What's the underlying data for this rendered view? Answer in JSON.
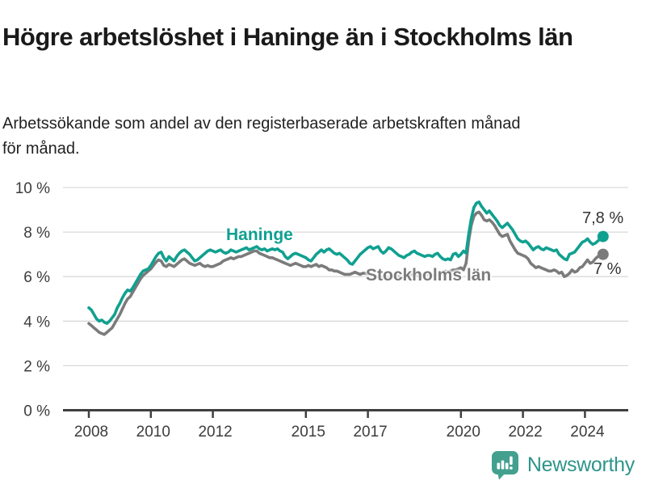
{
  "header": {
    "title": "Högre arbetslöshet i Haninge än i Stockholms län",
    "subtitle": "Arbetssökande som andel av den registerbaserade arbetskraften månad för månad."
  },
  "footer": {
    "brand": "Newsworthy",
    "brand_color": "#2d958a",
    "logo_icon": "bar-chart-speech-bubble-icon",
    "logo_color": "#43a08f"
  },
  "chart_data": {
    "type": "line",
    "unit": "%",
    "grid": true,
    "ylim": [
      0,
      10
    ],
    "y_ticks": [
      0,
      2,
      4,
      6,
      8,
      10
    ],
    "y_tick_suffix": " %",
    "x_start_year": 2008,
    "points_per_year": 12,
    "x_ticks": [
      2008,
      2010,
      2012,
      2015,
      2017,
      2020,
      2022,
      2024
    ],
    "series": [
      {
        "name": "Haninge",
        "color": "#10a090",
        "end_label": "7,8 %",
        "end_value": 7.8,
        "values": [
          4.6,
          4.5,
          4.3,
          4.1,
          4.0,
          4.05,
          3.95,
          3.9,
          4.0,
          4.15,
          4.3,
          4.6,
          4.8,
          5.05,
          5.25,
          5.4,
          5.35,
          5.5,
          5.7,
          5.9,
          6.1,
          6.25,
          6.3,
          6.35,
          6.5,
          6.7,
          6.9,
          7.05,
          7.1,
          6.85,
          6.7,
          6.9,
          6.8,
          6.7,
          6.9,
          7.05,
          7.15,
          7.2,
          7.1,
          7.0,
          6.85,
          6.7,
          6.75,
          6.85,
          6.95,
          7.05,
          7.15,
          7.2,
          7.15,
          7.1,
          7.15,
          7.2,
          7.1,
          7.05,
          7.1,
          7.2,
          7.15,
          7.1,
          7.15,
          7.2,
          7.25,
          7.3,
          7.2,
          7.25,
          7.3,
          7.35,
          7.25,
          7.2,
          7.25,
          7.15,
          7.2,
          7.25,
          7.2,
          7.25,
          7.15,
          7.1,
          6.9,
          6.8,
          6.9,
          7.0,
          7.05,
          7.0,
          6.95,
          6.9,
          6.85,
          6.75,
          6.7,
          6.85,
          7.0,
          7.1,
          7.2,
          7.1,
          7.2,
          7.25,
          7.15,
          7.05,
          7.0,
          7.05,
          6.95,
          6.85,
          6.75,
          6.6,
          6.55,
          6.7,
          6.85,
          7.0,
          7.1,
          7.2,
          7.3,
          7.35,
          7.25,
          7.3,
          7.35,
          7.15,
          7.05,
          7.15,
          7.3,
          7.25,
          7.15,
          7.05,
          6.95,
          6.9,
          6.85,
          6.95,
          7.0,
          7.1,
          7.15,
          7.05,
          7.0,
          6.95,
          6.9,
          6.95,
          6.95,
          6.9,
          7.0,
          7.05,
          6.9,
          6.8,
          6.75,
          6.8,
          6.75,
          7.0,
          7.05,
          6.9,
          7.0,
          7.15,
          7.05,
          7.9,
          8.6,
          9.1,
          9.3,
          9.35,
          9.15,
          9.0,
          8.85,
          8.95,
          8.8,
          8.65,
          8.5,
          8.3,
          8.2,
          8.3,
          8.4,
          8.25,
          8.1,
          7.9,
          7.7,
          7.6,
          7.55,
          7.6,
          7.5,
          7.35,
          7.2,
          7.3,
          7.35,
          7.25,
          7.2,
          7.3,
          7.25,
          7.2,
          7.15,
          7.2,
          7.0,
          6.9,
          6.8,
          6.75,
          7.0,
          7.05,
          7.1,
          7.25,
          7.4,
          7.55,
          7.6,
          7.7,
          7.55,
          7.45,
          7.5,
          7.6,
          7.7,
          7.8
        ]
      },
      {
        "name": "Stockholms län",
        "color": "#7b7b7b",
        "end_label": "7 %",
        "end_value": 7.0,
        "values": [
          3.9,
          3.8,
          3.7,
          3.6,
          3.5,
          3.45,
          3.4,
          3.5,
          3.6,
          3.7,
          3.9,
          4.1,
          4.3,
          4.55,
          4.8,
          5.0,
          5.1,
          5.3,
          5.5,
          5.7,
          5.9,
          6.05,
          6.15,
          6.25,
          6.35,
          6.5,
          6.65,
          6.75,
          6.7,
          6.5,
          6.45,
          6.55,
          6.5,
          6.45,
          6.55,
          6.65,
          6.75,
          6.8,
          6.7,
          6.6,
          6.55,
          6.5,
          6.55,
          6.6,
          6.5,
          6.45,
          6.5,
          6.45,
          6.45,
          6.5,
          6.55,
          6.6,
          6.7,
          6.75,
          6.8,
          6.85,
          6.8,
          6.85,
          6.9,
          6.9,
          6.95,
          7.0,
          7.05,
          7.1,
          7.15,
          7.15,
          7.05,
          7.0,
          6.95,
          6.9,
          6.85,
          6.85,
          6.8,
          6.75,
          6.7,
          6.65,
          6.6,
          6.55,
          6.5,
          6.55,
          6.6,
          6.55,
          6.5,
          6.45,
          6.45,
          6.5,
          6.45,
          6.5,
          6.55,
          6.45,
          6.5,
          6.45,
          6.4,
          6.3,
          6.3,
          6.25,
          6.25,
          6.2,
          6.15,
          6.1,
          6.1,
          6.1,
          6.15,
          6.2,
          6.15,
          6.1,
          6.15,
          6.15,
          6.1,
          6.1,
          6.05,
          6.0,
          6.0,
          5.95,
          6.0,
          6.0,
          5.95,
          6.0,
          6.0,
          6.05,
          6.0,
          5.95,
          5.95,
          6.0,
          6.05,
          6.1,
          6.1,
          6.05,
          6.0,
          6.05,
          6.1,
          6.1,
          6.1,
          6.05,
          6.05,
          6.1,
          6.15,
          6.2,
          6.25,
          6.2,
          6.25,
          6.3,
          6.3,
          6.35,
          6.4,
          6.3,
          6.6,
          7.6,
          8.3,
          8.7,
          8.85,
          8.9,
          8.75,
          8.55,
          8.5,
          8.55,
          8.45,
          8.3,
          8.1,
          7.9,
          7.8,
          7.85,
          7.9,
          7.6,
          7.4,
          7.2,
          7.05,
          7.0,
          6.95,
          6.9,
          6.8,
          6.6,
          6.5,
          6.4,
          6.45,
          6.4,
          6.35,
          6.3,
          6.25,
          6.25,
          6.3,
          6.25,
          6.15,
          6.2,
          6.0,
          6.05,
          6.15,
          6.3,
          6.2,
          6.25,
          6.4,
          6.45,
          6.6,
          6.75,
          6.6,
          6.65,
          6.8,
          6.9,
          6.95,
          7.0
        ]
      }
    ]
  }
}
